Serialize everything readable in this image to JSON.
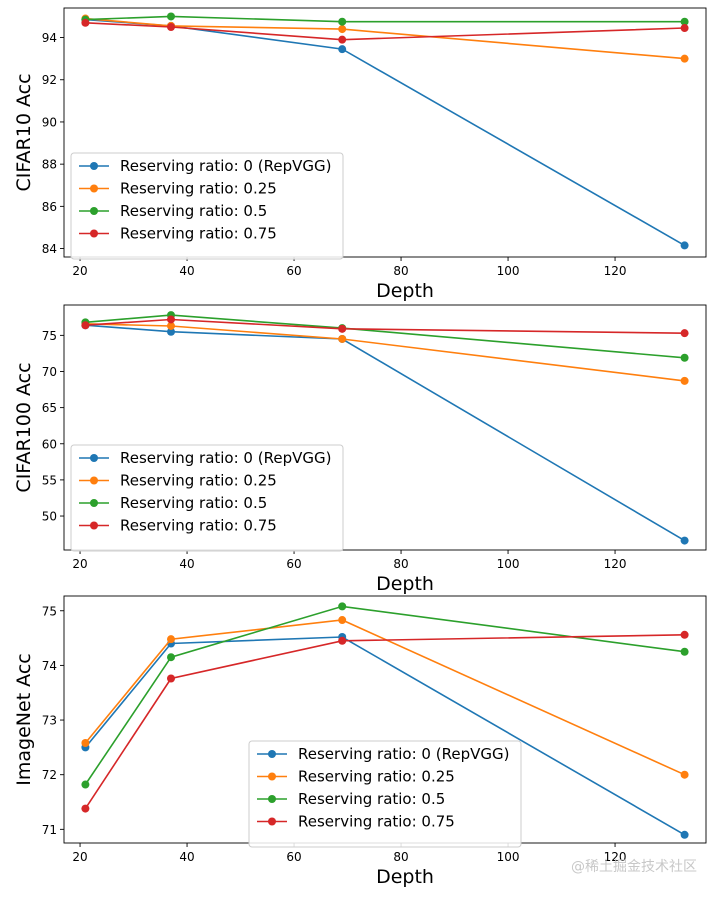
{
  "chart_data": [
    {
      "type": "line",
      "title": "",
      "xlabel": "Depth",
      "ylabel": "CIFAR10 Acc",
      "xlim": [
        17,
        137
      ],
      "ylim": [
        83.6,
        95.4
      ],
      "xticks": [
        20,
        40,
        60,
        80,
        100,
        120
      ],
      "yticks": [
        84,
        86,
        88,
        90,
        92,
        94
      ],
      "x": [
        21,
        37,
        69,
        133
      ],
      "legend_position": "lower-left",
      "series": [
        {
          "name": "Reserving ratio: 0 (RepVGG)",
          "color": "#1f77b4",
          "values": [
            94.85,
            94.55,
            93.45,
            84.15
          ]
        },
        {
          "name": "Reserving ratio: 0.25",
          "color": "#ff7f0e",
          "values": [
            94.9,
            94.55,
            94.4,
            93.0
          ]
        },
        {
          "name": "Reserving ratio: 0.5",
          "color": "#2ca02c",
          "values": [
            94.85,
            95.0,
            94.75,
            94.75
          ]
        },
        {
          "name": "Reserving ratio: 0.75",
          "color": "#d62728",
          "values": [
            94.7,
            94.5,
            93.9,
            94.45
          ]
        }
      ]
    },
    {
      "type": "line",
      "title": "",
      "xlabel": "Depth",
      "ylabel": "CIFAR100 Acc",
      "xlim": [
        17,
        137
      ],
      "ylim": [
        45.3,
        79.2
      ],
      "xticks": [
        20,
        40,
        60,
        80,
        100,
        120
      ],
      "yticks": [
        50,
        55,
        60,
        65,
        70,
        75
      ],
      "x": [
        21,
        37,
        69,
        133
      ],
      "legend_position": "lower-left",
      "series": [
        {
          "name": "Reserving ratio: 0 (RepVGG)",
          "color": "#1f77b4",
          "values": [
            76.4,
            75.5,
            74.5,
            46.6
          ]
        },
        {
          "name": "Reserving ratio: 0.25",
          "color": "#ff7f0e",
          "values": [
            76.6,
            76.3,
            74.5,
            68.7
          ]
        },
        {
          "name": "Reserving ratio: 0.5",
          "color": "#2ca02c",
          "values": [
            76.8,
            77.8,
            76.0,
            71.9
          ]
        },
        {
          "name": "Reserving ratio: 0.75",
          "color": "#d62728",
          "values": [
            76.4,
            77.2,
            75.9,
            75.3
          ]
        }
      ]
    },
    {
      "type": "line",
      "title": "",
      "xlabel": "Depth",
      "ylabel": "ImageNet Acc",
      "xlim": [
        17,
        137
      ],
      "ylim": [
        70.75,
        75.27
      ],
      "xticks": [
        20,
        40,
        60,
        80,
        100,
        120
      ],
      "yticks": [
        71,
        72,
        73,
        74,
        75
      ],
      "x": [
        21,
        37,
        69,
        133
      ],
      "legend_position": "lower-center",
      "series": [
        {
          "name": "Reserving ratio: 0 (RepVGG)",
          "color": "#1f77b4",
          "values": [
            72.5,
            74.4,
            74.52,
            70.9
          ]
        },
        {
          "name": "Reserving ratio: 0.25",
          "color": "#ff7f0e",
          "values": [
            72.58,
            74.48,
            74.83,
            72.0
          ]
        },
        {
          "name": "Reserving ratio: 0.5",
          "color": "#2ca02c",
          "values": [
            71.82,
            74.15,
            75.08,
            74.25
          ]
        },
        {
          "name": "Reserving ratio: 0.75",
          "color": "#d62728",
          "values": [
            71.38,
            73.76,
            74.45,
            74.56
          ]
        }
      ]
    }
  ],
  "watermark": "@稀土掘金技术社区"
}
